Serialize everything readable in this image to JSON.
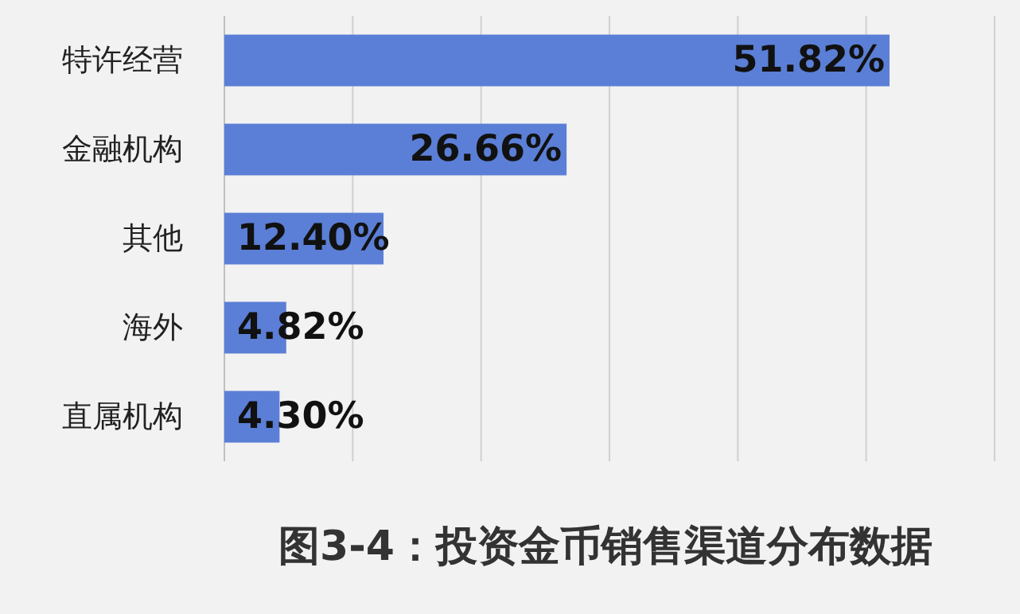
{
  "chart_data": {
    "type": "bar",
    "orientation": "horizontal",
    "title": "图3-4：投资金币销售渠道分布数据",
    "categories": [
      "特许经营",
      "金融机构",
      "其他",
      "海外",
      "直属机构"
    ],
    "values": [
      51.82,
      26.66,
      12.4,
      4.82,
      4.3
    ],
    "value_labels": [
      "51.82%",
      "26.66%",
      "12.40%",
      "4.82%",
      "4.30%"
    ],
    "color": "#5b7fd6",
    "xlim": [
      0,
      60
    ],
    "xticks": [
      0,
      10,
      20,
      30,
      40,
      50,
      60
    ],
    "tick_labels": "y",
    "grid": "x"
  }
}
